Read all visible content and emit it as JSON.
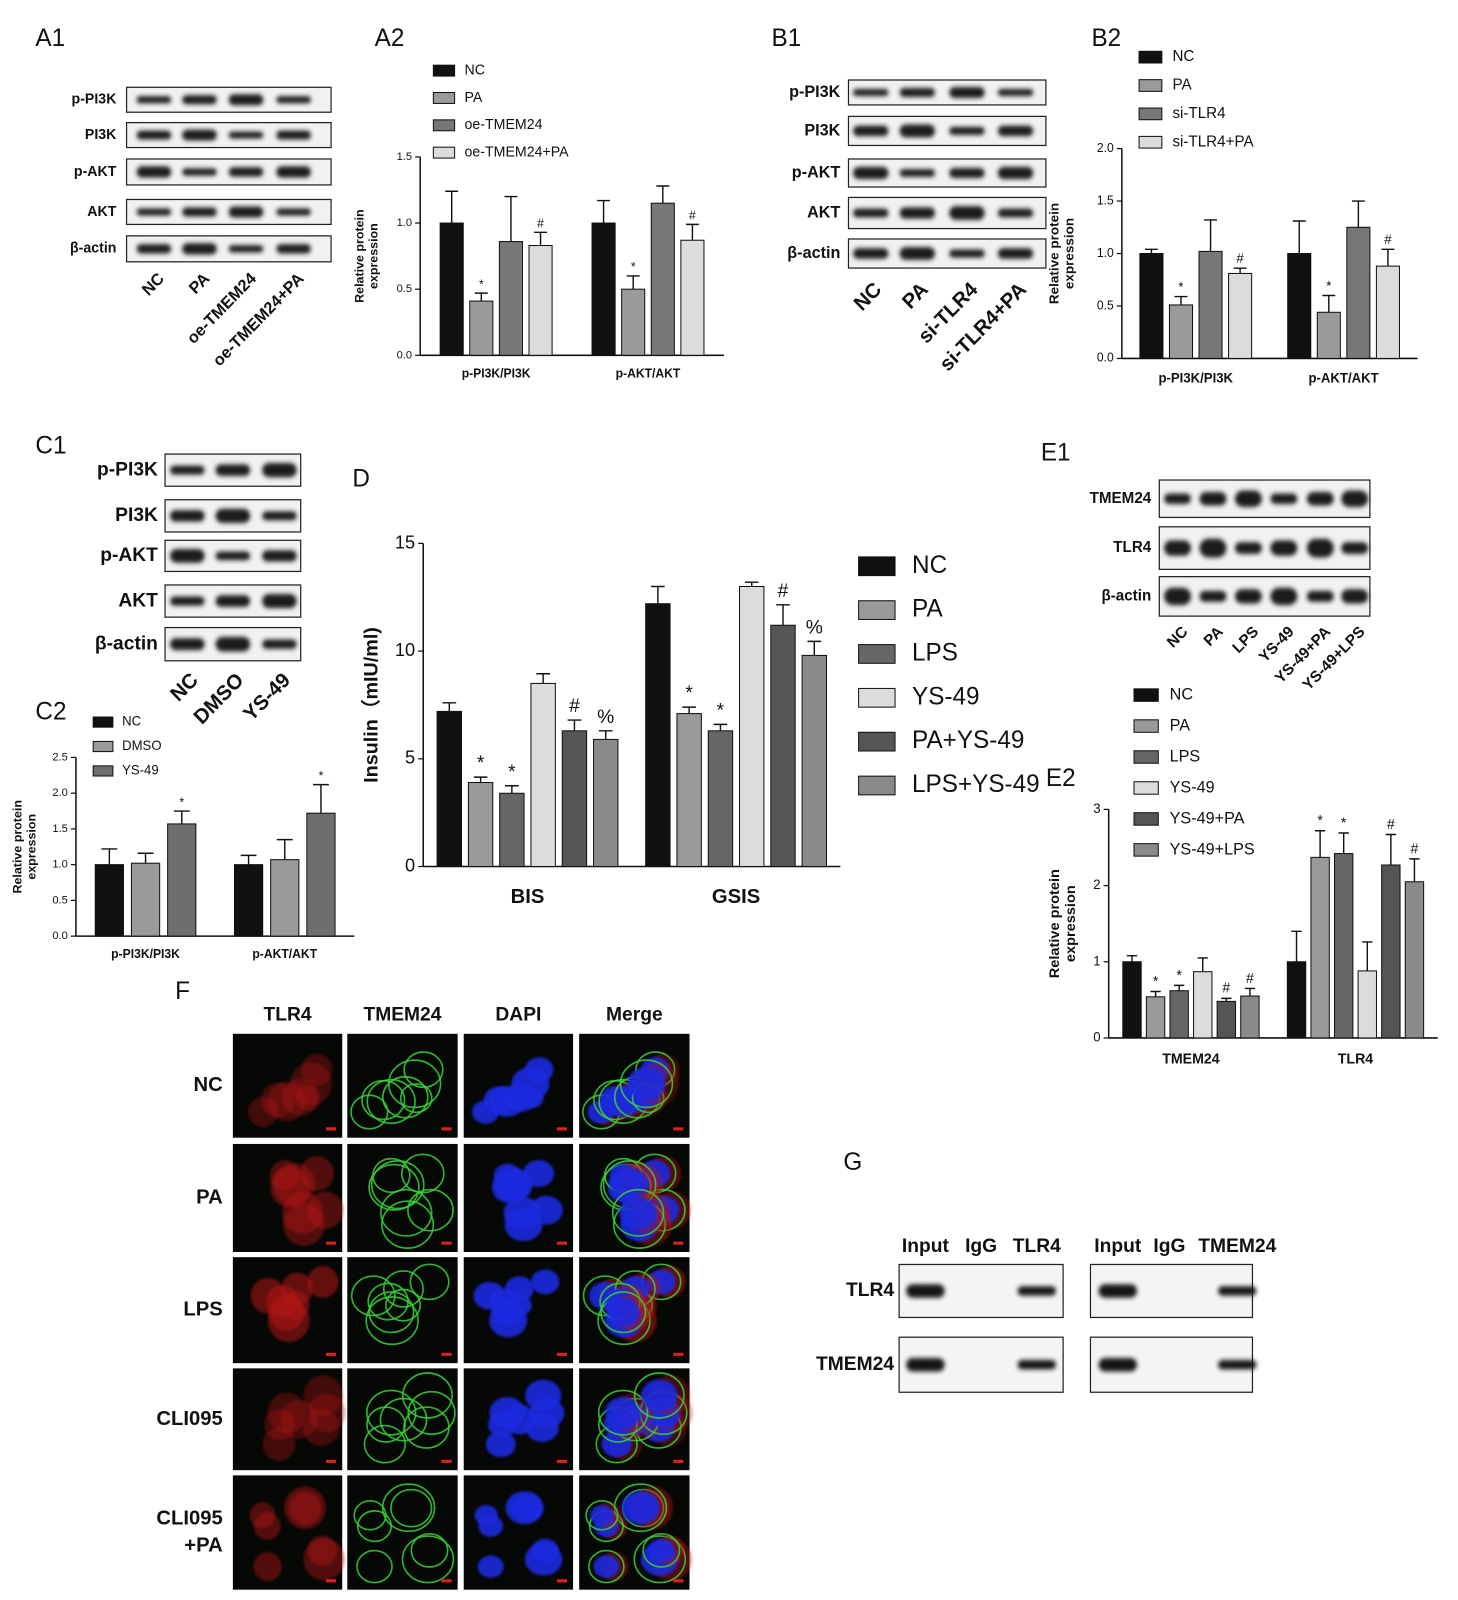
{
  "chart_data": [
    {
      "type": "bar",
      "panel": "A2",
      "ylabel": [
        "Relative protein",
        "expression"
      ],
      "categories": [
        "p-PI3K/PI3K",
        "p-AKT/AKT"
      ],
      "ylim": [
        0,
        1.5
      ],
      "yticks": [
        {
          "value": 0,
          "label": "0.0"
        },
        0.5,
        {
          "value": 1,
          "label": "1.0"
        },
        1.5
      ],
      "series": [
        {
          "name": "NC",
          "color": "#111111",
          "values": [
            1.0,
            1.0
          ],
          "errors": [
            0.24,
            0.17
          ],
          "marks": [
            null,
            null
          ]
        },
        {
          "name": "PA",
          "color": "#9a9a9a",
          "values": [
            0.41,
            0.5
          ],
          "errors": [
            0.06,
            0.1
          ],
          "marks": [
            "*",
            "*"
          ]
        },
        {
          "name": "oe-TMEM24",
          "color": "#777777",
          "values": [
            0.86,
            1.15
          ],
          "errors": [
            0.34,
            0.13
          ],
          "marks": [
            null,
            null
          ]
        },
        {
          "name": "oe-TMEM24+PA",
          "color": "#dcdcdc",
          "values": [
            0.83,
            0.87
          ],
          "errors": [
            0.1,
            0.12
          ],
          "marks": [
            "#",
            "#"
          ]
        }
      ]
    },
    {
      "type": "bar",
      "panel": "B2",
      "ylabel": [
        "Relative protein",
        "expression"
      ],
      "categories": [
        "p-PI3K/PI3K",
        "p-AKT/AKT"
      ],
      "ylim": [
        0,
        2
      ],
      "yticks": [
        {
          "value": 0,
          "label": "0.0"
        },
        0.5,
        {
          "value": 1,
          "label": "1.0"
        },
        1.5,
        {
          "value": 2,
          "label": "2.0"
        }
      ],
      "series": [
        {
          "name": "NC",
          "color": "#111111",
          "values": [
            1.0,
            1.0
          ],
          "errors": [
            0.04,
            0.31
          ],
          "marks": [
            null,
            null
          ]
        },
        {
          "name": "PA",
          "color": "#9a9a9a",
          "values": [
            0.51,
            0.44
          ],
          "errors": [
            0.08,
            0.16
          ],
          "marks": [
            "*",
            "*"
          ]
        },
        {
          "name": "si-TLR4",
          "color": "#777777",
          "values": [
            1.02,
            1.25
          ],
          "errors": [
            0.3,
            0.25
          ],
          "marks": [
            null,
            null
          ]
        },
        {
          "name": "si-TLR4+PA",
          "color": "#dcdcdc",
          "values": [
            0.81,
            0.88
          ],
          "errors": [
            0.05,
            0.16
          ],
          "marks": [
            "#",
            "#"
          ]
        }
      ]
    },
    {
      "type": "bar",
      "panel": "C2",
      "ylabel": [
        "Relative protein",
        "expression"
      ],
      "categories": [
        "p-PI3K/PI3K",
        "p-AKT/AKT"
      ],
      "ylim": [
        0,
        2.5
      ],
      "yticks": [
        {
          "value": 0,
          "label": "0.0"
        },
        0.5,
        {
          "value": 1,
          "label": "1.0"
        },
        1.5,
        {
          "value": 2,
          "label": "2.0"
        },
        2.5
      ],
      "series": [
        {
          "name": "NC",
          "color": "#111111",
          "values": [
            1.0,
            1.0
          ],
          "errors": [
            0.22,
            0.13
          ],
          "marks": [
            null,
            null
          ]
        },
        {
          "name": "DMSO",
          "color": "#9a9a9a",
          "values": [
            1.02,
            1.07
          ],
          "errors": [
            0.14,
            0.28
          ],
          "marks": [
            null,
            null
          ]
        },
        {
          "name": "YS-49",
          "color": "#6e6e6e",
          "values": [
            1.57,
            1.72
          ],
          "errors": [
            0.18,
            0.4
          ],
          "marks": [
            "*",
            "*"
          ]
        }
      ]
    },
    {
      "type": "bar",
      "panel": "D",
      "ylabel": [
        "Insulin（mIU/ml)"
      ],
      "categories": [
        "BIS",
        "GSIS"
      ],
      "ylim": [
        0,
        15
      ],
      "yticks": [
        0,
        5,
        10,
        15
      ],
      "series": [
        {
          "name": "NC",
          "color": "#111111",
          "values": [
            7.2,
            12.2
          ],
          "errors": [
            0.4,
            0.8
          ],
          "marks": [
            null,
            null
          ]
        },
        {
          "name": "PA",
          "color": "#9a9a9a",
          "values": [
            3.9,
            7.1
          ],
          "errors": [
            0.25,
            0.3
          ],
          "marks": [
            "*",
            "*"
          ]
        },
        {
          "name": "LPS",
          "color": "#666666",
          "values": [
            3.4,
            6.3
          ],
          "errors": [
            0.35,
            0.3
          ],
          "marks": [
            "*",
            "*"
          ]
        },
        {
          "name": "YS-49",
          "color": "#dcdcdc",
          "values": [
            8.5,
            13.0
          ],
          "errors": [
            0.45,
            0.2
          ],
          "marks": [
            null,
            null
          ]
        },
        {
          "name": "PA+YS-49",
          "color": "#555555",
          "values": [
            6.3,
            11.2
          ],
          "errors": [
            0.5,
            0.95
          ],
          "marks": [
            "#",
            "#"
          ]
        },
        {
          "name": "LPS+YS-49",
          "color": "#8a8a8a",
          "values": [
            5.9,
            9.8
          ],
          "errors": [
            0.4,
            0.65
          ],
          "marks": [
            "%",
            "%"
          ]
        }
      ]
    },
    {
      "type": "bar",
      "panel": "E2",
      "ylabel": [
        "Relative protein",
        "expression"
      ],
      "categories": [
        "TMEM24",
        "TLR4"
      ],
      "ylim": [
        0,
        3
      ],
      "yticks": [
        0,
        1,
        2,
        3
      ],
      "series": [
        {
          "name": "NC",
          "color": "#111111",
          "values": [
            1.0,
            1.0
          ],
          "errors": [
            0.08,
            0.4
          ],
          "marks": [
            null,
            null
          ]
        },
        {
          "name": "PA",
          "color": "#9a9a9a",
          "values": [
            0.54,
            2.37
          ],
          "errors": [
            0.07,
            0.35
          ],
          "marks": [
            "*",
            "*"
          ]
        },
        {
          "name": "LPS",
          "color": "#666666",
          "values": [
            0.62,
            2.42
          ],
          "errors": [
            0.07,
            0.27
          ],
          "marks": [
            "*",
            "*"
          ]
        },
        {
          "name": "YS-49",
          "color": "#dcdcdc",
          "values": [
            0.87,
            0.88
          ],
          "errors": [
            0.18,
            0.38
          ],
          "marks": [
            null,
            null
          ]
        },
        {
          "name": "YS-49+PA",
          "color": "#555555",
          "values": [
            0.48,
            2.27
          ],
          "errors": [
            0.04,
            0.4
          ],
          "marks": [
            "#",
            "#"
          ]
        },
        {
          "name": "YS-49+LPS",
          "color": "#8a8a8a",
          "values": [
            0.55,
            2.05
          ],
          "errors": [
            0.1,
            0.3
          ],
          "marks": [
            "#",
            "#"
          ]
        }
      ]
    }
  ],
  "blots": [
    {
      "panel": "A1",
      "rows": [
        "p-PI3K",
        "PI3K",
        "p-AKT",
        "AKT",
        "β-actin"
      ],
      "lanes": [
        "NC",
        "PA",
        "oe-TMEM24",
        "oe-TMEM24+PA"
      ]
    },
    {
      "panel": "B1",
      "rows": [
        "p-PI3K",
        "PI3K",
        "p-AKT",
        "AKT",
        "β-actin"
      ],
      "lanes": [
        "NC",
        "PA",
        "si-TLR4",
        "si-TLR4+PA"
      ]
    },
    {
      "panel": "C1",
      "rows": [
        "p-PI3K",
        "PI3K",
        "p-AKT",
        "AKT",
        "β-actin"
      ],
      "lanes": [
        "NC",
        "DMSO",
        "YS-49"
      ]
    },
    {
      "panel": "E1",
      "rows": [
        "TMEM24",
        "TLR4",
        "β-actin"
      ],
      "lanes": [
        "NC",
        "PA",
        "LPS",
        "YS-49",
        "YS-49+PA",
        "YS-49+LPS"
      ]
    }
  ],
  "imaging": {
    "panel": "F",
    "columns": [
      "TLR4",
      "TMEM24",
      "DAPI",
      "Merge"
    ],
    "rows": [
      [
        "NC"
      ],
      [
        "PA"
      ],
      [
        "LPS"
      ],
      [
        "CLI095"
      ],
      [
        "CLI095",
        "+PA"
      ]
    ]
  },
  "coip": {
    "panel": "G",
    "groups": [
      [
        "Input",
        "IgG",
        "TLR4"
      ],
      [
        "Input",
        "IgG",
        "TMEM24"
      ]
    ],
    "rows": [
      "TLR4",
      "TMEM24"
    ]
  }
}
